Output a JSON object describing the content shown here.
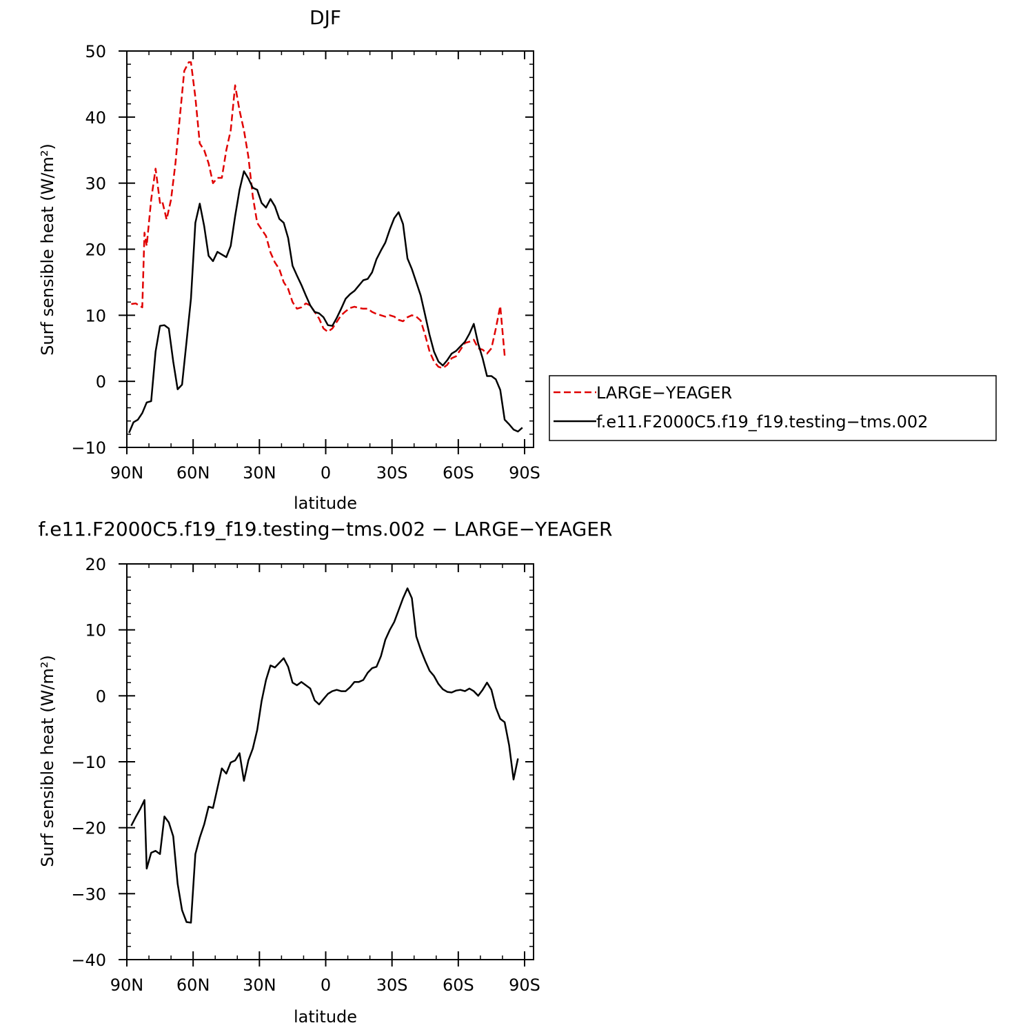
{
  "chart_data": [
    {
      "type": "line",
      "title": "DJF",
      "xlabel": "latitude",
      "ylabel": "Surf sensible heat (W/m²)",
      "xlim": [
        90,
        -90
      ],
      "ylim": [
        -10,
        50
      ],
      "xticks": [
        90,
        60,
        30,
        0,
        -30,
        -60,
        -90
      ],
      "xtick_labels": [
        "90N",
        "60N",
        "30N",
        "0",
        "30S",
        "60S",
        "90S"
      ],
      "yticks": [
        -10,
        0,
        10,
        20,
        30,
        40,
        50
      ],
      "ytick_labels": [
        "−10",
        "0",
        "10",
        "20",
        "30",
        "40",
        "50"
      ],
      "legend_position": "right",
      "series": [
        {
          "name": "LARGE−YEAGER",
          "color": "#e00000",
          "dash": "dashed",
          "points": [
            [
              88,
              11.7
            ],
            [
              86,
              11.8
            ],
            [
              83,
              11.2
            ],
            [
              82,
              22.5
            ],
            [
              81,
              20.5
            ],
            [
              79,
              27.5
            ],
            [
              77,
              32.2
            ],
            [
              75,
              27
            ],
            [
              74,
              27.3
            ],
            [
              72,
              24.5
            ],
            [
              70,
              27.5
            ],
            [
              68,
              33
            ],
            [
              66,
              40
            ],
            [
              64,
              47
            ],
            [
              62,
              48.3
            ],
            [
              61,
              48.3
            ],
            [
              59,
              43
            ],
            [
              57,
              36
            ],
            [
              55,
              35
            ],
            [
              53,
              33
            ],
            [
              51,
              30
            ],
            [
              49,
              30.8
            ],
            [
              47,
              30.8
            ],
            [
              45,
              35
            ],
            [
              43,
              38
            ],
            [
              41,
              44.8
            ],
            [
              39,
              41
            ],
            [
              37,
              38
            ],
            [
              35,
              34
            ],
            [
              33,
              28
            ],
            [
              31,
              24
            ],
            [
              29,
              23
            ],
            [
              27,
              22
            ],
            [
              25,
              19.5
            ],
            [
              23,
              18
            ],
            [
              21,
              17
            ],
            [
              19,
              15
            ],
            [
              17,
              14
            ],
            [
              15,
              12
            ],
            [
              13,
              11
            ],
            [
              11,
              11.2
            ],
            [
              9,
              11.8
            ],
            [
              7,
              11.5
            ],
            [
              5,
              10.5
            ],
            [
              3,
              9.5
            ],
            [
              1,
              8
            ],
            [
              -1,
              7.5
            ],
            [
              -3,
              8
            ],
            [
              -5,
              9
            ],
            [
              -7,
              10
            ],
            [
              -9,
              10.6
            ],
            [
              -11,
              11.1
            ],
            [
              -13,
              11.3
            ],
            [
              -15,
              11.1
            ],
            [
              -17,
              11
            ],
            [
              -19,
              11
            ],
            [
              -21,
              10.5
            ],
            [
              -23,
              10.2
            ],
            [
              -25,
              10
            ],
            [
              -27,
              9.8
            ],
            [
              -29,
              10
            ],
            [
              -31,
              9.8
            ],
            [
              -33,
              9.3
            ],
            [
              -35,
              9.1
            ],
            [
              -37,
              9.7
            ],
            [
              -39,
              10
            ],
            [
              -41,
              9.8
            ],
            [
              -43,
              9.2
            ],
            [
              -45,
              7
            ],
            [
              -47,
              4.5
            ],
            [
              -49,
              3
            ],
            [
              -51,
              2.2
            ],
            [
              -53,
              2
            ],
            [
              -55,
              2.5
            ],
            [
              -57,
              3.5
            ],
            [
              -59,
              3.8
            ],
            [
              -61,
              4.8
            ],
            [
              -63,
              5.8
            ],
            [
              -65,
              6
            ],
            [
              -67,
              6.3
            ],
            [
              -69,
              5
            ],
            [
              -71,
              4.8
            ],
            [
              -73,
              4.2
            ],
            [
              -75,
              5
            ],
            [
              -77,
              8
            ],
            [
              -79,
              11.4
            ],
            [
              -81,
              3.9
            ]
          ]
        },
        {
          "name": "f.e11.F2000C5.f19_f19.testing−tms.002",
          "color": "#000000",
          "dash": "solid",
          "points": [
            [
              89,
              -7.8
            ],
            [
              87,
              -6.2
            ],
            [
              85,
              -5.8
            ],
            [
              83,
              -4.8
            ],
            [
              81,
              -3.2
            ],
            [
              79,
              -3
            ],
            [
              77,
              4.5
            ],
            [
              75,
              8.4
            ],
            [
              73,
              8.5
            ],
            [
              71,
              8
            ],
            [
              69,
              3
            ],
            [
              67,
              -1.2
            ],
            [
              65,
              -0.5
            ],
            [
              63,
              6
            ],
            [
              61,
              12.5
            ],
            [
              59,
              24
            ],
            [
              57,
              26.9
            ],
            [
              55,
              23.5
            ],
            [
              53,
              19
            ],
            [
              51,
              18.2
            ],
            [
              49,
              19.6
            ],
            [
              47,
              19.2
            ],
            [
              45,
              18.8
            ],
            [
              43,
              20.5
            ],
            [
              41,
              25
            ],
            [
              39,
              29
            ],
            [
              37,
              31.8
            ],
            [
              35,
              30.7
            ],
            [
              33,
              29.3
            ],
            [
              31,
              29
            ],
            [
              29,
              27
            ],
            [
              27,
              26.3
            ],
            [
              25,
              27.6
            ],
            [
              23,
              26.5
            ],
            [
              21,
              24.6
            ],
            [
              19,
              24
            ],
            [
              17,
              21.7
            ],
            [
              15,
              17.5
            ],
            [
              13,
              16
            ],
            [
              11,
              14.6
            ],
            [
              9,
              13
            ],
            [
              7,
              11.5
            ],
            [
              5,
              10.5
            ],
            [
              3,
              10.3
            ],
            [
              1,
              9.7
            ],
            [
              -1,
              8.5
            ],
            [
              -3,
              8.4
            ],
            [
              -5,
              9.6
            ],
            [
              -7,
              11
            ],
            [
              -9,
              12.5
            ],
            [
              -11,
              13.2
            ],
            [
              -13,
              13.7
            ],
            [
              -15,
              14.5
            ],
            [
              -17,
              15.3
            ],
            [
              -19,
              15.5
            ],
            [
              -21,
              16.5
            ],
            [
              -23,
              18.5
            ],
            [
              -25,
              19.8
            ],
            [
              -27,
              21
            ],
            [
              -29,
              23
            ],
            [
              -31,
              24.7
            ],
            [
              -33,
              25.6
            ],
            [
              -35,
              23.8
            ],
            [
              -37,
              18.6
            ],
            [
              -39,
              17
            ],
            [
              -41,
              15
            ],
            [
              -43,
              13
            ],
            [
              -45,
              10
            ],
            [
              -47,
              7
            ],
            [
              -49,
              4.5
            ],
            [
              -51,
              3
            ],
            [
              -53,
              2.4
            ],
            [
              -55,
              3.2
            ],
            [
              -57,
              4.2
            ],
            [
              -59,
              4.6
            ],
            [
              -61,
              5.3
            ],
            [
              -63,
              6
            ],
            [
              -65,
              7.2
            ],
            [
              -67,
              8.7
            ],
            [
              -69,
              5.7
            ],
            [
              -71,
              3.5
            ],
            [
              -73,
              0.8
            ],
            [
              -75,
              0.8
            ],
            [
              -77,
              0.3
            ],
            [
              -79,
              -1.3
            ],
            [
              -81,
              -5.8
            ],
            [
              -83,
              -6.5
            ],
            [
              -85,
              -7.3
            ],
            [
              -87,
              -7.6
            ],
            [
              -89,
              -7
            ]
          ]
        }
      ]
    },
    {
      "type": "line",
      "title": "f.e11.F2000C5.f19_f19.testing−tms.002 − LARGE−YEAGER",
      "xlabel": "latitude",
      "ylabel": "Surf sensible heat (W/m²)",
      "xlim": [
        90,
        -90
      ],
      "ylim": [
        -40,
        20
      ],
      "xticks": [
        90,
        60,
        30,
        0,
        -30,
        -60,
        -90
      ],
      "xtick_labels": [
        "90N",
        "60N",
        "30N",
        "0",
        "30S",
        "60S",
        "90S"
      ],
      "yticks": [
        -40,
        -30,
        -20,
        -10,
        0,
        10,
        20
      ],
      "ytick_labels": [
        "−40",
        "−30",
        "−20",
        "−10",
        "0",
        "10",
        "20"
      ],
      "series": [
        {
          "color": "#000000",
          "dash": "solid",
          "points": [
            [
              88,
              -19.7
            ],
            [
              86,
              -18.4
            ],
            [
              84,
              -17.2
            ],
            [
              82,
              -15.8
            ],
            [
              81,
              -26.2
            ],
            [
              79,
              -23.8
            ],
            [
              77,
              -23.5
            ],
            [
              75,
              -24
            ],
            [
              73,
              -18.3
            ],
            [
              71,
              -19.2
            ],
            [
              69,
              -21.3
            ],
            [
              67,
              -28.5
            ],
            [
              65,
              -32.5
            ],
            [
              63,
              -34.3
            ],
            [
              61,
              -34.4
            ],
            [
              59,
              -24
            ],
            [
              57,
              -21.5
            ],
            [
              55,
              -19.5
            ],
            [
              53,
              -16.8
            ],
            [
              51,
              -17
            ],
            [
              49,
              -14
            ],
            [
              47,
              -11
            ],
            [
              45,
              -11.8
            ],
            [
              43,
              -10.1
            ],
            [
              41,
              -9.8
            ],
            [
              39,
              -8.7
            ],
            [
              37,
              -12.9
            ],
            [
              35,
              -9.8
            ],
            [
              33,
              -8
            ],
            [
              31,
              -5.2
            ],
            [
              29,
              -0.8
            ],
            [
              27,
              2.4
            ],
            [
              25,
              4.6
            ],
            [
              23,
              4.3
            ],
            [
              21,
              5
            ],
            [
              19,
              5.7
            ],
            [
              17,
              4.4
            ],
            [
              15,
              2
            ],
            [
              13,
              1.6
            ],
            [
              11,
              2.1
            ],
            [
              9,
              1.6
            ],
            [
              7,
              1.1
            ],
            [
              5,
              -0.7
            ],
            [
              3,
              -1.3
            ],
            [
              1,
              -0.5
            ],
            [
              -1,
              0.3
            ],
            [
              -3,
              0.7
            ],
            [
              -5,
              0.9
            ],
            [
              -7,
              0.7
            ],
            [
              -9,
              0.7
            ],
            [
              -11,
              1.3
            ],
            [
              -13,
              2.1
            ],
            [
              -15,
              2.1
            ],
            [
              -17,
              2.4
            ],
            [
              -19,
              3.5
            ],
            [
              -21,
              4.2
            ],
            [
              -23,
              4.4
            ],
            [
              -25,
              6
            ],
            [
              -27,
              8.5
            ],
            [
              -29,
              10
            ],
            [
              -31,
              11.2
            ],
            [
              -33,
              13
            ],
            [
              -35,
              14.8
            ],
            [
              -37,
              16.3
            ],
            [
              -39,
              14.8
            ],
            [
              -41,
              9
            ],
            [
              -43,
              7
            ],
            [
              -45,
              5.3
            ],
            [
              -47,
              3.8
            ],
            [
              -49,
              3
            ],
            [
              -51,
              1.8
            ],
            [
              -53,
              1
            ],
            [
              -55,
              0.6
            ],
            [
              -57,
              0.5
            ],
            [
              -59,
              0.8
            ],
            [
              -61,
              0.9
            ],
            [
              -63,
              0.7
            ],
            [
              -65,
              1.1
            ],
            [
              -67,
              0.7
            ],
            [
              -69,
              0
            ],
            [
              -71,
              0.9
            ],
            [
              -73,
              2
            ],
            [
              -75,
              0.9
            ],
            [
              -77,
              -1.8
            ],
            [
              -79,
              -3.5
            ],
            [
              -81,
              -4
            ],
            [
              -83,
              -7.5
            ],
            [
              -85,
              -12.7
            ],
            [
              -87,
              -9.5
            ]
          ]
        }
      ]
    }
  ]
}
